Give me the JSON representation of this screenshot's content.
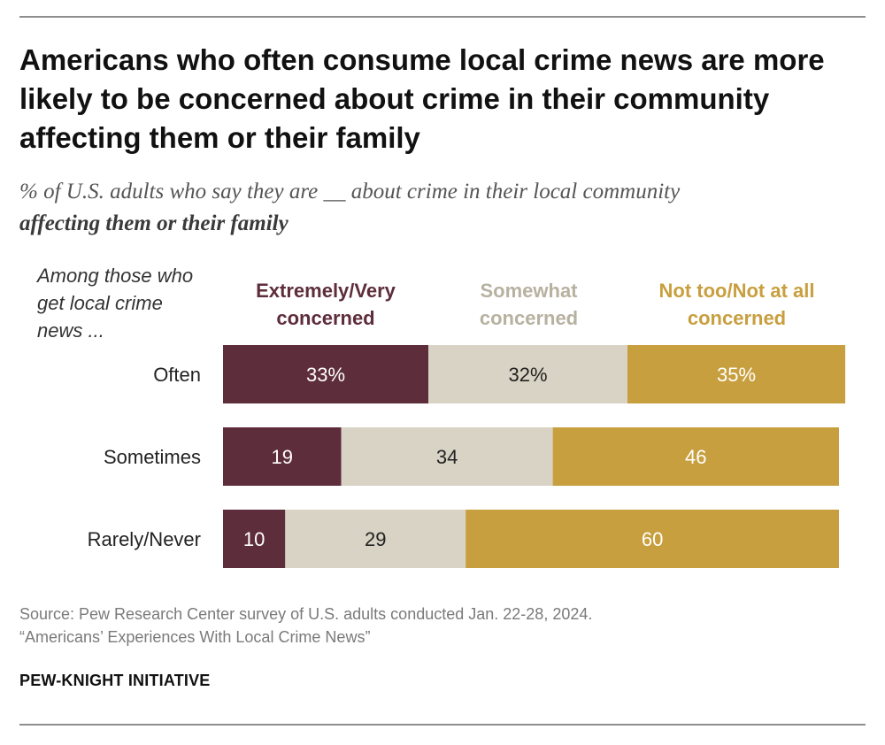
{
  "title": "Americans who often consume local crime news are more likely to be concerned about crime in their community affecting them or their family",
  "subtitle": {
    "part1": "% of U.S. adults who say they are __ about crime in their local community",
    "part2": "affecting them or their family"
  },
  "row_header": "Among those who get local crime news ...",
  "colors": {
    "extremely": "#5e2d3c",
    "somewhat": "#d8d3c4",
    "not_too": "#c89f3f",
    "somewhat_header": "#b7b1a0"
  },
  "chart_data": {
    "type": "bar",
    "orientation": "horizontal",
    "stacked": true,
    "categories": [
      "Often",
      "Sometimes",
      "Rarely/Never"
    ],
    "series": [
      {
        "name": "Extremely/Very concerned",
        "values": [
          33,
          19,
          10
        ],
        "labels": [
          "33%",
          "19",
          "10"
        ]
      },
      {
        "name": "Somewhat concerned",
        "values": [
          32,
          34,
          29
        ],
        "labels": [
          "32%",
          "34",
          "29"
        ]
      },
      {
        "name": "Not too/Not at all concerned",
        "values": [
          35,
          46,
          60
        ],
        "labels": [
          "35%",
          "46",
          "60"
        ]
      }
    ],
    "xlim": [
      0,
      100
    ]
  },
  "source": {
    "line1": "Source: Pew Research Center survey of U.S. adults conducted Jan. 22-28, 2024.",
    "line2": "“Americans’ Experiences With Local Crime News”"
  },
  "brand": "PEW-KNIGHT INITIATIVE"
}
